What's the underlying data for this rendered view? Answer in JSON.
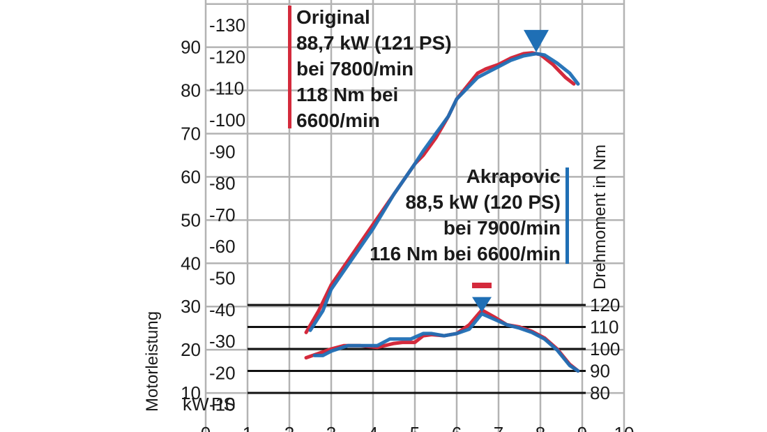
{
  "chart_data": {
    "type": "line",
    "x_axis": {
      "min": 0,
      "max": 10,
      "ticks": [
        "0",
        "1",
        "2",
        "3",
        "4",
        "5",
        "6",
        "7",
        "8",
        "9",
        "10"
      ]
    },
    "y_axis_kw": {
      "label": "Motorleistung",
      "unit": "kW",
      "min": 0,
      "max": 90,
      "ticks": [
        "10",
        "20",
        "30",
        "40",
        "50",
        "60",
        "70",
        "80",
        "90"
      ]
    },
    "y_axis_ps": {
      "unit": "PS",
      "min": 0,
      "max": 130,
      "ticks": [
        "10",
        "20",
        "30",
        "40",
        "50",
        "60",
        "70",
        "80",
        "90",
        "100",
        "110",
        "120",
        "130"
      ]
    },
    "y_axis_nm": {
      "label": "Drehmoment in Nm",
      "min": 80,
      "max": 120,
      "ticks": [
        "80",
        "90",
        "100",
        "110",
        "120"
      ]
    },
    "grid": true,
    "colors": {
      "original": "#d42a3c",
      "akrapovic": "#1f6fb5",
      "grid": "#b3b3b3"
    },
    "legend": {
      "original": {
        "lines": [
          "Original",
          "88,7 kW (121 PS)",
          "bei 7800/min",
          "118 Nm bei",
          "6600/min"
        ]
      },
      "akrapovic": {
        "lines": [
          "Akrapovic",
          "88,5 kW (120 PS)",
          "bei 7900/min",
          "116 Nm bei 6600/min"
        ]
      }
    },
    "series": [
      {
        "name": "Original",
        "quantity": "power_kw",
        "color": "#d42a3c",
        "points": [
          [
            2.4,
            24
          ],
          [
            2.7,
            29
          ],
          [
            3.0,
            35
          ],
          [
            3.5,
            42
          ],
          [
            4.0,
            49
          ],
          [
            4.5,
            56
          ],
          [
            5.0,
            63
          ],
          [
            5.2,
            65
          ],
          [
            5.5,
            69
          ],
          [
            5.8,
            74
          ],
          [
            6.0,
            78
          ],
          [
            6.5,
            84
          ],
          [
            6.7,
            85
          ],
          [
            7.0,
            86
          ],
          [
            7.3,
            87.5
          ],
          [
            7.6,
            88.5
          ],
          [
            7.8,
            88.7
          ],
          [
            8.0,
            88.3
          ],
          [
            8.3,
            86
          ],
          [
            8.6,
            83
          ],
          [
            8.8,
            81.5
          ]
        ]
      },
      {
        "name": "Akrapovic",
        "quantity": "power_kw",
        "color": "#1f6fb5",
        "points": [
          [
            2.5,
            24.5
          ],
          [
            2.8,
            29
          ],
          [
            3.0,
            34
          ],
          [
            3.5,
            41
          ],
          [
            4.0,
            48
          ],
          [
            4.5,
            56
          ],
          [
            5.0,
            63
          ],
          [
            5.2,
            66
          ],
          [
            5.5,
            70
          ],
          [
            5.8,
            74
          ],
          [
            6.0,
            78
          ],
          [
            6.5,
            83
          ],
          [
            6.7,
            84
          ],
          [
            7.0,
            85.5
          ],
          [
            7.3,
            87
          ],
          [
            7.6,
            88
          ],
          [
            7.9,
            88.5
          ],
          [
            8.1,
            88.2
          ],
          [
            8.4,
            86.3
          ],
          [
            8.7,
            84
          ],
          [
            8.9,
            81.5
          ]
        ]
      },
      {
        "name": "Original",
        "quantity": "torque_nm",
        "color": "#d42a3c",
        "points": [
          [
            2.4,
            96
          ],
          [
            2.7,
            98
          ],
          [
            3.0,
            100
          ],
          [
            3.3,
            101.5
          ],
          [
            3.7,
            101.5
          ],
          [
            4.1,
            100.7
          ],
          [
            4.5,
            102.5
          ],
          [
            4.7,
            103
          ],
          [
            5.0,
            103
          ],
          [
            5.2,
            106
          ],
          [
            5.4,
            106.5
          ],
          [
            5.7,
            106
          ],
          [
            6.0,
            107
          ],
          [
            6.3,
            111
          ],
          [
            6.6,
            117.7
          ],
          [
            6.9,
            114.5
          ],
          [
            7.2,
            111
          ],
          [
            7.5,
            110
          ],
          [
            7.8,
            108
          ],
          [
            8.1,
            105
          ],
          [
            8.4,
            100
          ],
          [
            8.7,
            93
          ],
          [
            8.9,
            90
          ]
        ]
      },
      {
        "name": "Akrapovic",
        "quantity": "torque_nm",
        "color": "#1f6fb5",
        "points": [
          [
            2.6,
            97
          ],
          [
            2.8,
            97
          ],
          [
            3.0,
            99
          ],
          [
            3.4,
            101.5
          ],
          [
            3.8,
            101.5
          ],
          [
            4.1,
            101.5
          ],
          [
            4.4,
            104.5
          ],
          [
            4.6,
            104.5
          ],
          [
            4.9,
            104.5
          ],
          [
            5.2,
            107
          ],
          [
            5.4,
            107
          ],
          [
            5.7,
            106
          ],
          [
            6.0,
            107
          ],
          [
            6.3,
            109
          ],
          [
            6.6,
            116
          ],
          [
            6.9,
            113.5
          ],
          [
            7.2,
            111
          ],
          [
            7.5,
            109.5
          ],
          [
            7.8,
            107.5
          ],
          [
            8.1,
            104.5
          ],
          [
            8.4,
            99.5
          ],
          [
            8.7,
            92.5
          ],
          [
            8.9,
            90
          ]
        ]
      }
    ],
    "markers": [
      {
        "series": "Original",
        "quantity": "torque_nm",
        "x": 6.6,
        "y": 118,
        "color": "#d42a3c"
      },
      {
        "series": "Akrapovic",
        "quantity": "torque_nm",
        "x": 6.6,
        "y": 116,
        "color": "#1f6fb5"
      },
      {
        "series": "Akrapovic",
        "quantity": "power_kw",
        "x": 7.9,
        "y": 88.5,
        "color": "#1f6fb5"
      }
    ]
  }
}
